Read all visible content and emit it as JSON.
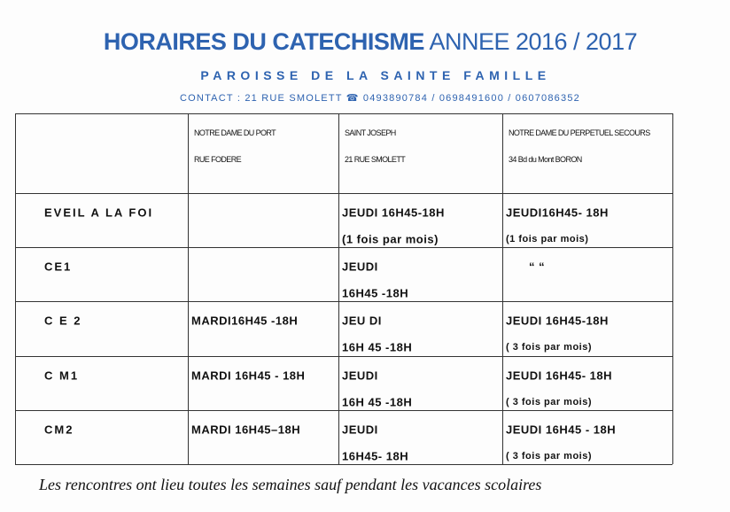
{
  "header": {
    "title_bold": "HORAIRES DU CATECHISME",
    "title_year": "ANNEE 2016 / 2017",
    "subtitle": "PAROISSE DE LA SAINTE FAMILLE",
    "contact": "CONTACT : 21 RUE SMOLETT ☎ 0493890784 / 0698491600 / 0607086352"
  },
  "table": {
    "columns": [
      [
        "NOTRE DAME DU PORT",
        "RUE FODERE"
      ],
      [
        "SAINT JOSEPH",
        "21 RUE SMOLETT"
      ],
      [
        "NOTRE DAME DU PERPETUEL SECOURS",
        "34 Bd du Mont BORON"
      ]
    ],
    "rows": [
      {
        "label": "EVEIL A LA FOI",
        "cells": [
          [],
          [
            "JEUDI 16H45-18H",
            "(1 fois par mois)"
          ],
          [
            "JEUDI16H45- 18H",
            "(1 fois par mois)"
          ]
        ]
      },
      {
        "label": "CE1",
        "cells": [
          [],
          [
            "JEUDI",
            "16H45 -18H"
          ],
          [
            "“ “"
          ]
        ]
      },
      {
        "label": "C E 2",
        "cells": [
          [
            "MARDI16H45 -18H"
          ],
          [
            "JEU DI",
            "16H 45 -18H"
          ],
          [
            "JEUDI 16H45-18H",
            "( 3 fois par mois)"
          ]
        ]
      },
      {
        "label": "C M1",
        "cells": [
          [
            "MARDI 16H45 - 18H"
          ],
          [
            "JEUDI",
            "16H 45 -18H"
          ],
          [
            "JEUDI 16H45- 18H",
            "( 3 fois par mois)"
          ]
        ]
      },
      {
        "label": "CM2",
        "cells": [
          [
            "MARDI 16H45–18H"
          ],
          [
            "JEUDI",
            "16H45- 18H"
          ],
          [
            "JEUDI 16H45 - 18H",
            "( 3 fois par mois)"
          ]
        ]
      }
    ]
  },
  "footer": {
    "note": "Les rencontres ont lieu toutes les semaines sauf pendant les vacances scolaires"
  }
}
